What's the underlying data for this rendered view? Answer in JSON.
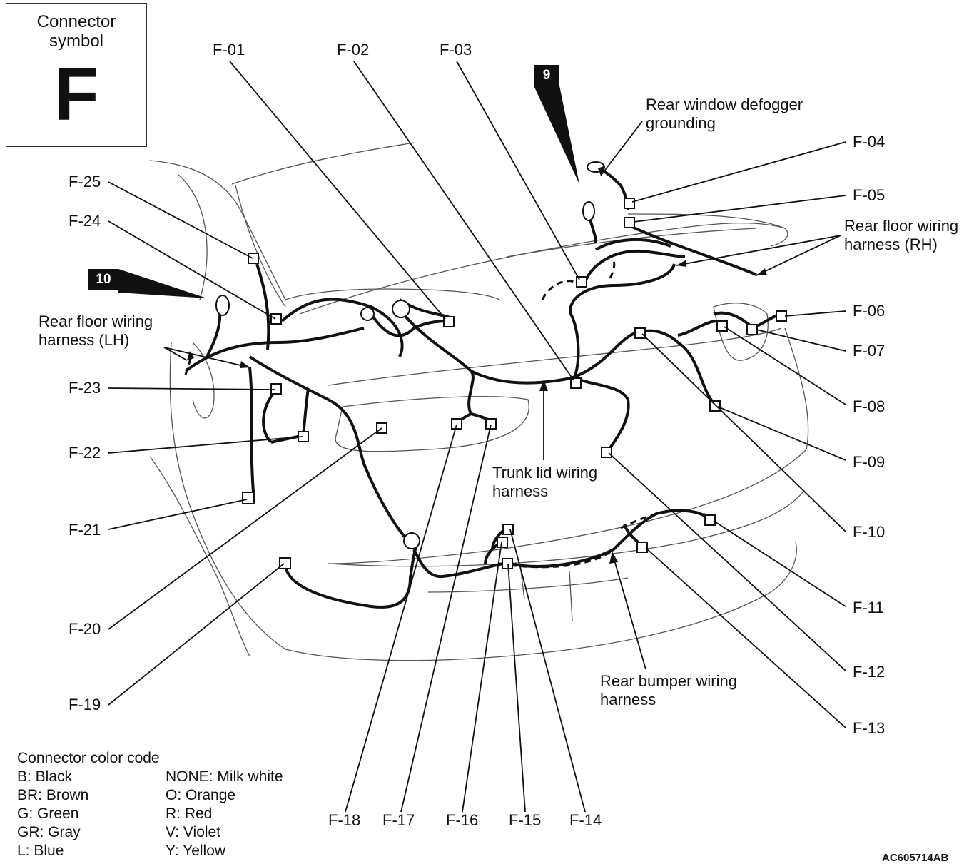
{
  "legend": {
    "title": "Connector\nsymbol",
    "letter": "F"
  },
  "markers": [
    "9",
    "10"
  ],
  "connectors": {
    "f01": "F-01",
    "f02": "F-02",
    "f03": "F-03",
    "f04": "F-04",
    "f05": "F-05",
    "f06": "F-06",
    "f07": "F-07",
    "f08": "F-08",
    "f09": "F-09",
    "f10": "F-10",
    "f11": "F-11",
    "f12": "F-12",
    "f13": "F-13",
    "f14": "F-14",
    "f15": "F-15",
    "f16": "F-16",
    "f17": "F-17",
    "f18": "F-18",
    "f19": "F-19",
    "f20": "F-20",
    "f21": "F-21",
    "f22": "F-22",
    "f23": "F-23",
    "f24": "F-24",
    "f25": "F-25"
  },
  "notes": {
    "defogger": "Rear window defogger grounding",
    "floor_rh": "Rear floor wiring harness (RH)",
    "floor_lh": "Rear floor wiring harness (LH)",
    "trunk_lid": "Trunk lid wiring harness",
    "bumper": "Rear bumper wiring harness"
  },
  "color_code": {
    "title": "Connector color code",
    "left": [
      "B: Black",
      "BR: Brown",
      "G: Green",
      "GR: Gray",
      "L: Blue"
    ],
    "right": [
      "NONE: Milk white",
      "O: Orange",
      "R: Red",
      "V: Violet",
      "Y: Yellow"
    ]
  },
  "code_id": "AC605714AB"
}
